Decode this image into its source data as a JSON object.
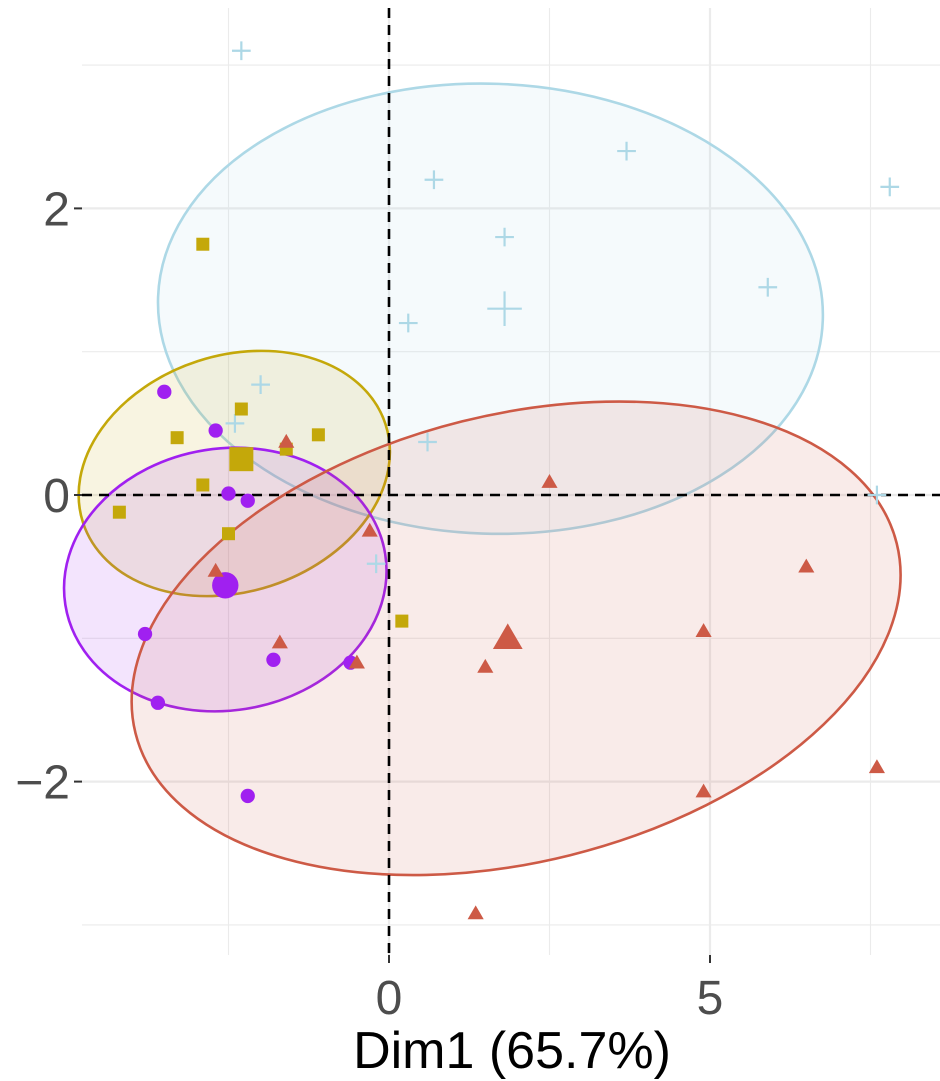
{
  "chart_data": {
    "type": "scatter",
    "title": "",
    "xlabel": "Dim1 (65.7%)",
    "ylabel": "",
    "xlim": [
      -4.8,
      8.4
    ],
    "ylim": [
      -3.2,
      3.4
    ],
    "x_ticks": [
      0,
      5
    ],
    "x_tick_labels": [
      "0",
      "5"
    ],
    "y_ticks": [
      -2,
      0,
      2
    ],
    "y_tick_labels": [
      "−2",
      "0",
      "2"
    ],
    "grid": true,
    "reference_lines": {
      "x": 0,
      "y": 0,
      "style": "dashed"
    },
    "legend": "none",
    "series": [
      {
        "color": "#add8e6",
        "marker": "cross",
        "points": [
          [
            -2.3,
            3.1
          ],
          [
            0.7,
            2.2
          ],
          [
            3.7,
            2.4
          ],
          [
            7.8,
            2.15
          ],
          [
            1.8,
            1.8
          ],
          [
            5.9,
            1.45
          ],
          [
            0.3,
            1.2
          ],
          [
            -2.0,
            0.77
          ],
          [
            -2.4,
            0.5
          ],
          [
            0.6,
            0.37
          ],
          [
            7.6,
            0.0
          ],
          [
            -0.2,
            -0.48
          ]
        ],
        "centroid": [
          1.8,
          1.3
        ],
        "ellipse": {
          "center": [
            1.58,
            1.3
          ],
          "rx": 5.18,
          "ry": 1.57,
          "angle": -2
        }
      },
      {
        "color": "#c4a80a",
        "marker": "square",
        "points": [
          [
            -2.9,
            1.75
          ],
          [
            -2.3,
            0.6
          ],
          [
            -3.3,
            0.4
          ],
          [
            -1.6,
            0.32
          ],
          [
            -1.1,
            0.42
          ],
          [
            -2.9,
            0.07
          ],
          [
            -4.2,
            -0.12
          ],
          [
            -2.5,
            -0.27
          ],
          [
            0.2,
            -0.88
          ]
        ],
        "centroid": [
          -2.3,
          0.25
        ],
        "ellipse": {
          "center": [
            -2.41,
            0.15
          ],
          "rx": 1.84,
          "ry": 1.11,
          "angle": -72
        }
      },
      {
        "color": "#a020f0",
        "marker": "circle",
        "points": [
          [
            -3.5,
            0.72
          ],
          [
            -2.7,
            0.45
          ],
          [
            -2.5,
            0.01
          ],
          [
            -2.2,
            -0.04
          ],
          [
            -3.8,
            -0.97
          ],
          [
            -1.8,
            -1.15
          ],
          [
            -0.6,
            -1.17
          ],
          [
            -3.6,
            -1.45
          ],
          [
            -2.2,
            -2.1
          ]
        ],
        "centroid": [
          -2.55,
          -0.63
        ],
        "ellipse": {
          "center": [
            -2.55,
            -0.59
          ],
          "rx": 2.04,
          "ry": 1.13,
          "angle": -81
        }
      },
      {
        "color": "#cd5a46",
        "marker": "triangle",
        "points": [
          [
            -1.6,
            0.37
          ],
          [
            2.5,
            0.09
          ],
          [
            -0.3,
            -0.25
          ],
          [
            -2.7,
            -0.53
          ],
          [
            6.5,
            -0.5
          ],
          [
            -1.7,
            -1.03
          ],
          [
            4.9,
            -0.95
          ],
          [
            -0.5,
            -1.17
          ],
          [
            1.5,
            -1.2
          ],
          [
            4.9,
            -2.07
          ],
          [
            7.6,
            -1.9
          ],
          [
            1.35,
            -2.92
          ]
        ],
        "centroid": [
          1.85,
          -1.0
        ],
        "ellipse": {
          "center": [
            1.98,
            -1.0
          ],
          "rx": 6.11,
          "ry": 1.56,
          "angle": 14
        }
      }
    ]
  }
}
